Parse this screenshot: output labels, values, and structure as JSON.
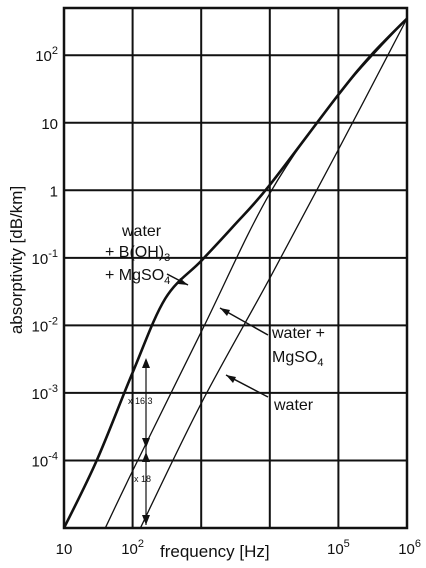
{
  "chart_data": {
    "type": "line",
    "xlabel": "frequency [Hz]",
    "ylabel": "absorptivity [dB/km]",
    "xscale": "log",
    "yscale": "log",
    "xlim": [
      10,
      1000000
    ],
    "ylim": [
      1e-05,
      500
    ],
    "grid": true,
    "x_ticks": [
      {
        "value": 10,
        "base": "10",
        "exp": ""
      },
      {
        "value": 100,
        "base": "10",
        "exp": "2"
      },
      {
        "value": 100000,
        "base": "10",
        "exp": "5"
      },
      {
        "value": 1000000,
        "base": "10",
        "exp": "6"
      }
    ],
    "y_ticks": [
      {
        "value": 0.0001,
        "base": "10",
        "exp": "-4"
      },
      {
        "value": 0.001,
        "base": "10",
        "exp": "-3"
      },
      {
        "value": 0.01,
        "base": "10",
        "exp": "-2"
      },
      {
        "value": 0.1,
        "base": "10",
        "exp": "-1"
      },
      {
        "value": 1,
        "base": "1",
        "exp": ""
      },
      {
        "value": 10,
        "base": "10",
        "exp": ""
      },
      {
        "value": 100,
        "base": "10",
        "exp": "2"
      }
    ],
    "series": [
      {
        "name": "water",
        "x": [
          130,
          1000,
          10000,
          100000,
          1000000
        ],
        "y": [
          1e-05,
          0.0007,
          0.05,
          4,
          350
        ]
      },
      {
        "name": "water + MgSO4",
        "x": [
          40,
          100,
          1000,
          10000,
          100000,
          1000000
        ],
        "y": [
          1e-05,
          7e-05,
          0.008,
          0.9,
          26,
          350
        ]
      },
      {
        "name": "water + B(OH)3 + MgSO4",
        "x": [
          10,
          30,
          100,
          300,
          1000,
          3000,
          10000,
          100000,
          300000,
          1000000
        ],
        "y": [
          1e-05,
          0.0001,
          0.002,
          0.025,
          0.09,
          0.3,
          1.2,
          26,
          100,
          350
        ]
      }
    ],
    "annotations": {
      "boron_label_1": "water",
      "boron_label_2": "+ B(OH)",
      "boron_sub": "3",
      "boron_label_3": "+ MgSO",
      "boron_sub2": "4",
      "mg_label_1": "water +",
      "mg_label_2": "MgSO",
      "mg_sub": "4",
      "water_label": "water",
      "ratio_1": "x 16.3",
      "ratio_2": "x 18"
    }
  }
}
